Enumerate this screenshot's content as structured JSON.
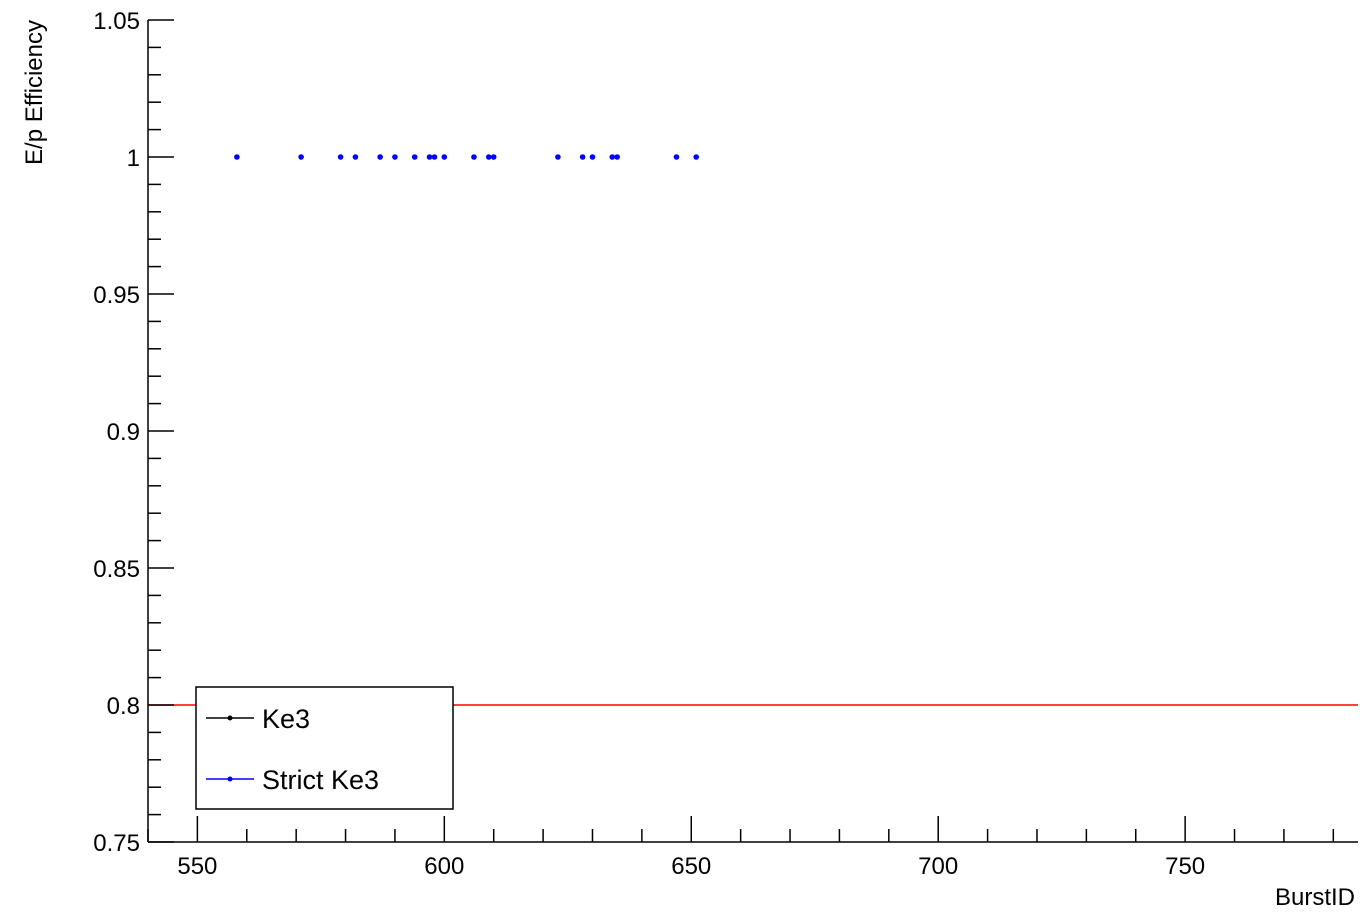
{
  "chart_data": {
    "type": "scatter",
    "title": "",
    "xlabel": "BurstID",
    "ylabel": "E/p Efficiency",
    "xlim": [
      540,
      785
    ],
    "ylim": [
      0.75,
      1.05
    ],
    "x_ticks": [
      "550",
      "600",
      "650",
      "700",
      "750"
    ],
    "y_ticks": [
      "0.75",
      "0.8",
      "0.85",
      "0.9",
      "0.95",
      "1",
      "1.05"
    ],
    "grid": false,
    "legend_position": "bottom-left",
    "series": [
      {
        "name": "Ke3",
        "color": "#000000",
        "x": [],
        "y": []
      },
      {
        "name": "Strict Ke3",
        "color": "#0000ff",
        "x": [
          558,
          571,
          579,
          582,
          587,
          590,
          594,
          597,
          598,
          600,
          606,
          609,
          610,
          623,
          628,
          630,
          634,
          635,
          647,
          651
        ],
        "y": [
          1,
          1,
          1,
          1,
          1,
          1,
          1,
          1,
          1,
          1,
          1,
          1,
          1,
          1,
          1,
          1,
          1,
          1,
          1,
          1
        ]
      }
    ],
    "reference_line": {
      "y": 0.8,
      "color": "#ff0000"
    }
  }
}
